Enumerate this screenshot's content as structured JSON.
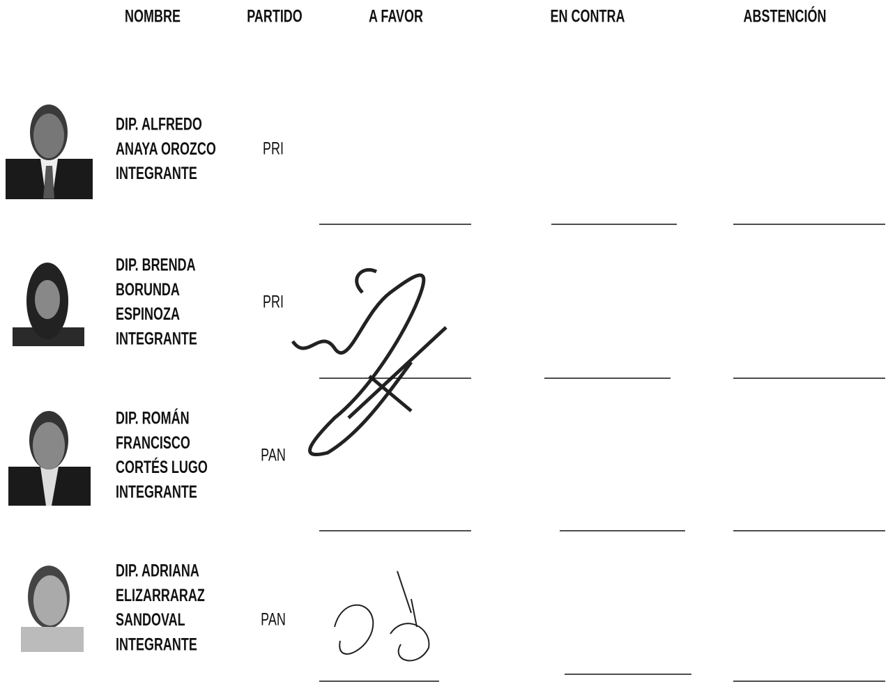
{
  "header": {
    "columns": [
      "NOMBRE",
      "PARTIDO",
      "A FAVOR",
      "EN CONTRA",
      "ABSTENCIÓN"
    ]
  },
  "rows": [
    {
      "name": [
        "DIP. ALFREDO",
        "ANAYA OROZCO",
        "INTEGRANTE"
      ],
      "party": "PRI"
    },
    {
      "name": [
        "DIP.  BRENDA",
        "BORUNDA",
        "ESPINOZA",
        "INTEGRANTE"
      ],
      "party": "PRI"
    },
    {
      "name": [
        "DIP. ROMÁN",
        "FRANCISCO",
        "CORTÉS LUGO",
        "INTEGRANTE"
      ],
      "party": "PAN"
    },
    {
      "name": [
        "DIP. ADRIANA",
        "ELIZARRARAZ",
        "SANDOVAL",
        "INTEGRANTE"
      ],
      "party": "PAN"
    }
  ]
}
